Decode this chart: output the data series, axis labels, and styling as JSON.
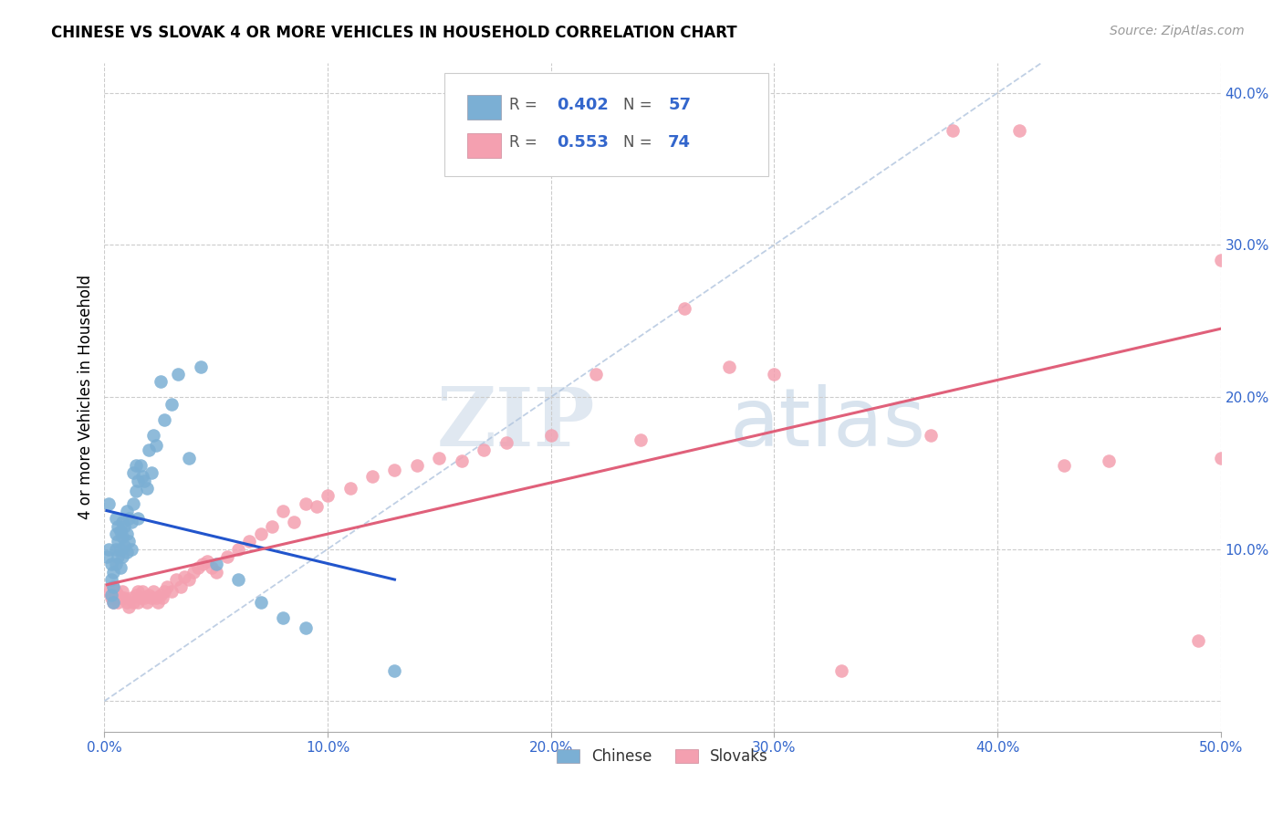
{
  "title": "CHINESE VS SLOVAK 4 OR MORE VEHICLES IN HOUSEHOLD CORRELATION CHART",
  "source": "Source: ZipAtlas.com",
  "ylabel": "4 or more Vehicles in Household",
  "xlim": [
    0.0,
    0.5
  ],
  "ylim": [
    -0.02,
    0.42
  ],
  "xticks": [
    0.0,
    0.1,
    0.2,
    0.3,
    0.4,
    0.5
  ],
  "xticklabels": [
    "0.0%",
    "10.0%",
    "20.0%",
    "30.0%",
    "40.0%",
    "50.0%"
  ],
  "yticks": [
    0.0,
    0.1,
    0.2,
    0.3,
    0.4
  ],
  "yticklabels": [
    "",
    "10.0%",
    "20.0%",
    "30.0%",
    "40.0%"
  ],
  "chinese_R": "0.402",
  "chinese_N": "57",
  "slovak_R": "0.553",
  "slovak_N": "74",
  "chinese_color": "#7bafd4",
  "slovak_color": "#f4a0b0",
  "chinese_line_color": "#2255cc",
  "slovak_line_color": "#e0607a",
  "diagonal_color": "#b0c4de",
  "watermark_zip": "ZIP",
  "watermark_atlas": "atlas",
  "chinese_x": [
    0.001,
    0.002,
    0.002,
    0.003,
    0.003,
    0.003,
    0.004,
    0.004,
    0.004,
    0.005,
    0.005,
    0.005,
    0.005,
    0.006,
    0.006,
    0.006,
    0.007,
    0.007,
    0.007,
    0.008,
    0.008,
    0.008,
    0.009,
    0.009,
    0.01,
    0.01,
    0.01,
    0.011,
    0.011,
    0.012,
    0.012,
    0.013,
    0.013,
    0.014,
    0.014,
    0.015,
    0.015,
    0.016,
    0.017,
    0.018,
    0.019,
    0.02,
    0.021,
    0.022,
    0.023,
    0.025,
    0.027,
    0.03,
    0.033,
    0.038,
    0.043,
    0.05,
    0.06,
    0.07,
    0.08,
    0.09,
    0.13
  ],
  "chinese_y": [
    0.095,
    0.13,
    0.1,
    0.09,
    0.08,
    0.07,
    0.085,
    0.075,
    0.065,
    0.12,
    0.11,
    0.1,
    0.09,
    0.115,
    0.105,
    0.095,
    0.112,
    0.1,
    0.088,
    0.118,
    0.108,
    0.095,
    0.115,
    0.102,
    0.125,
    0.11,
    0.098,
    0.12,
    0.105,
    0.118,
    0.1,
    0.15,
    0.13,
    0.155,
    0.138,
    0.145,
    0.12,
    0.155,
    0.148,
    0.145,
    0.14,
    0.165,
    0.15,
    0.175,
    0.168,
    0.21,
    0.185,
    0.195,
    0.215,
    0.16,
    0.22,
    0.09,
    0.08,
    0.065,
    0.055,
    0.048,
    0.02
  ],
  "slovak_x": [
    0.002,
    0.003,
    0.004,
    0.004,
    0.005,
    0.006,
    0.006,
    0.007,
    0.008,
    0.009,
    0.01,
    0.011,
    0.012,
    0.013,
    0.014,
    0.015,
    0.015,
    0.016,
    0.017,
    0.018,
    0.019,
    0.02,
    0.021,
    0.022,
    0.023,
    0.024,
    0.025,
    0.026,
    0.027,
    0.028,
    0.03,
    0.032,
    0.034,
    0.036,
    0.038,
    0.04,
    0.042,
    0.044,
    0.046,
    0.048,
    0.05,
    0.055,
    0.06,
    0.065,
    0.07,
    0.075,
    0.08,
    0.085,
    0.09,
    0.095,
    0.1,
    0.11,
    0.12,
    0.13,
    0.14,
    0.15,
    0.16,
    0.17,
    0.18,
    0.2,
    0.22,
    0.24,
    0.26,
    0.28,
    0.3,
    0.33,
    0.37,
    0.38,
    0.41,
    0.43,
    0.45,
    0.49,
    0.5,
    0.5
  ],
  "slovak_y": [
    0.072,
    0.068,
    0.075,
    0.065,
    0.072,
    0.07,
    0.065,
    0.068,
    0.072,
    0.068,
    0.065,
    0.062,
    0.068,
    0.065,
    0.07,
    0.072,
    0.065,
    0.068,
    0.072,
    0.068,
    0.065,
    0.07,
    0.068,
    0.072,
    0.068,
    0.065,
    0.07,
    0.068,
    0.072,
    0.075,
    0.072,
    0.08,
    0.075,
    0.082,
    0.08,
    0.085,
    0.088,
    0.09,
    0.092,
    0.088,
    0.085,
    0.095,
    0.1,
    0.105,
    0.11,
    0.115,
    0.125,
    0.118,
    0.13,
    0.128,
    0.135,
    0.14,
    0.148,
    0.152,
    0.155,
    0.16,
    0.158,
    0.165,
    0.17,
    0.175,
    0.215,
    0.172,
    0.258,
    0.22,
    0.215,
    0.02,
    0.175,
    0.375,
    0.375,
    0.155,
    0.158,
    0.04,
    0.16,
    0.29
  ]
}
